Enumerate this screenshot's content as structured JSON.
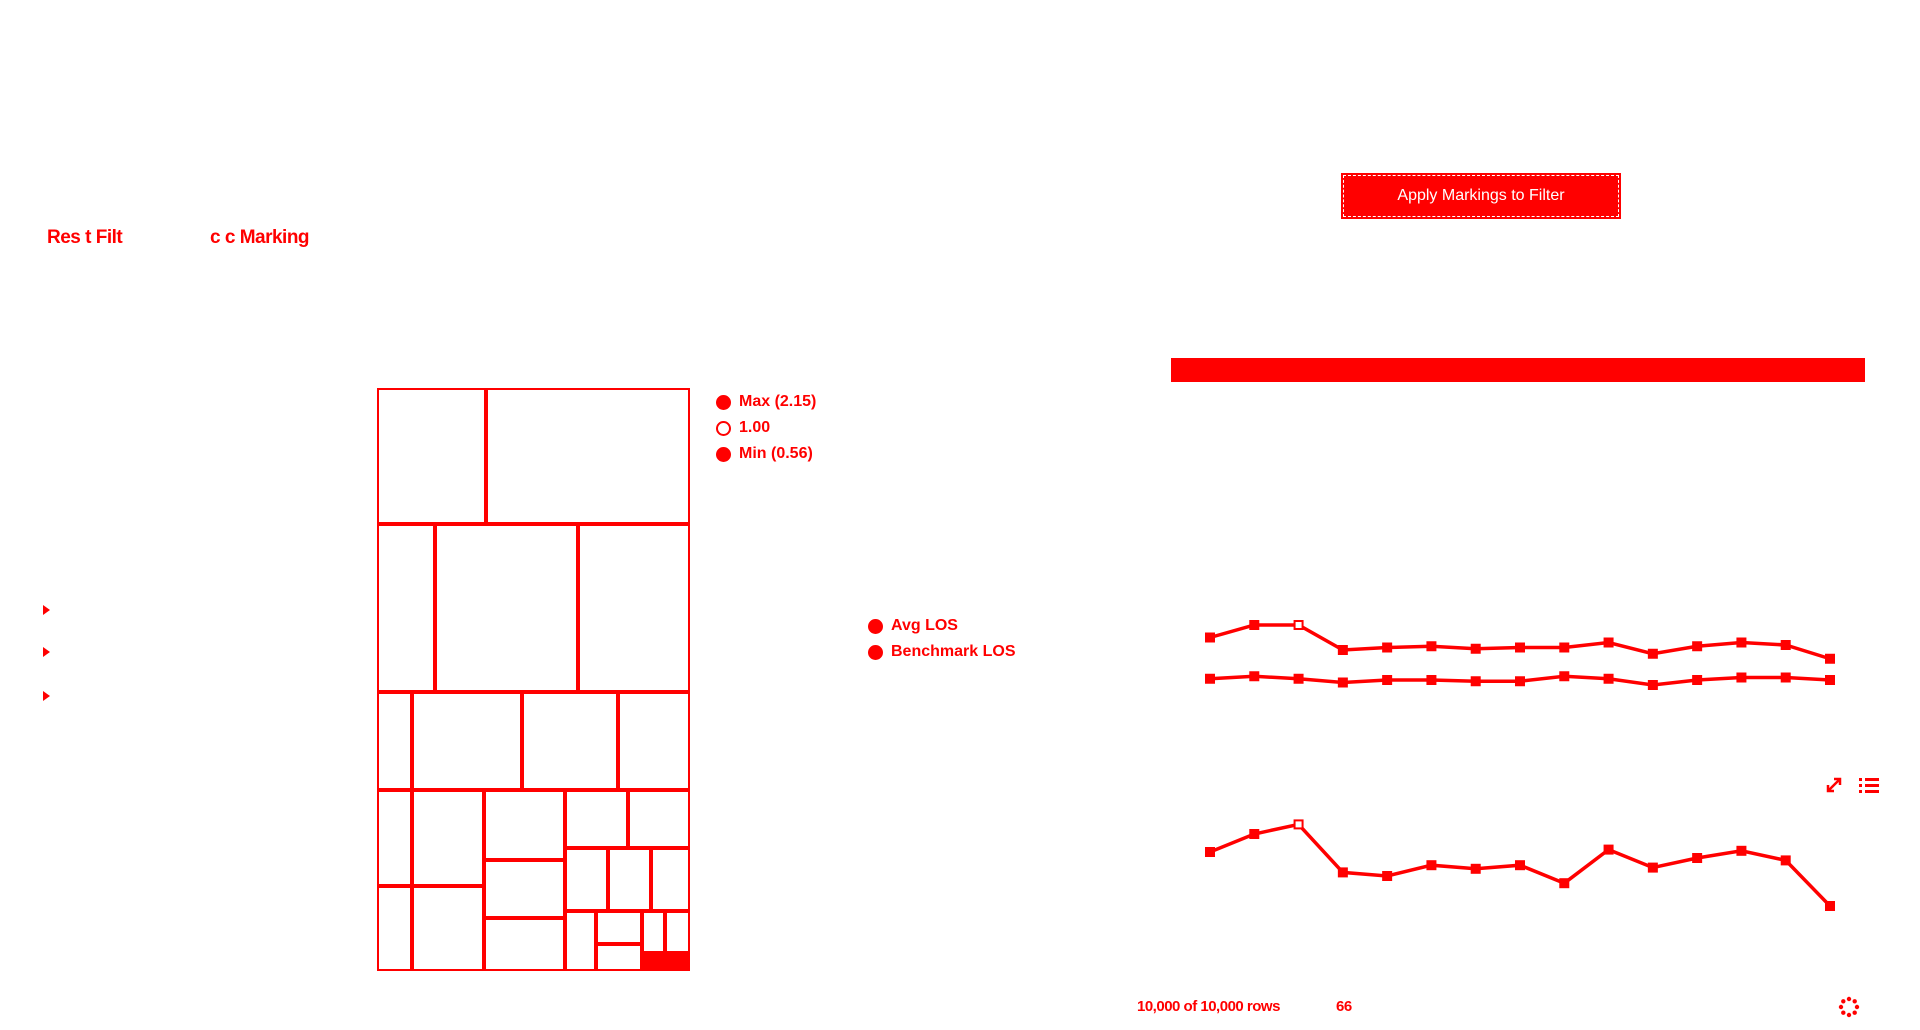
{
  "toolbar": {
    "reset_filters_label": "Res t Filt",
    "clear_marking_label": "c  c  Marking"
  },
  "apply_button": {
    "label": "Apply Markings to Filter"
  },
  "filter_tree": {
    "items": [
      {
        "expanded": false
      },
      {
        "expanded": false
      },
      {
        "expanded": false
      }
    ]
  },
  "treemap_legend": {
    "items": [
      {
        "label": "Max (2.15)",
        "style": "filled"
      },
      {
        "label": "1.00",
        "style": "hollow"
      },
      {
        "label": "Min (0.56)",
        "style": "filled"
      }
    ]
  },
  "line_legend": {
    "items": [
      {
        "label": "Avg LOS"
      },
      {
        "label": "Benchmark LOS"
      }
    ]
  },
  "chart_data": [
    {
      "type": "line",
      "series": [
        {
          "name": "Avg LOS",
          "values": [
            1.0,
            2.0,
            2.0,
            0.0,
            0.2,
            0.3,
            0.1,
            0.2,
            0.2,
            0.6,
            -0.3,
            0.3,
            0.6,
            0.4,
            -0.7
          ]
        },
        {
          "name": "Benchmark LOS",
          "values": [
            -2.3,
            -2.1,
            -2.3,
            -2.6,
            -2.4,
            -2.4,
            -2.5,
            -2.5,
            -2.1,
            -2.3,
            -2.8,
            -2.4,
            -2.2,
            -2.2,
            -2.4
          ]
        }
      ],
      "ylim": [
        -4,
        4
      ]
    },
    {
      "type": "line",
      "series": [
        {
          "values": [
            1.5,
            3.0,
            3.8,
            -0.2,
            -0.5,
            0.4,
            0.1,
            0.4,
            -1.1,
            1.7,
            0.2,
            1.0,
            1.6,
            0.8,
            -3.0
          ]
        }
      ],
      "ylim": [
        -5,
        5
      ]
    }
  ],
  "footer": {
    "rows_text": "10,000 of 10,000 rows",
    "count_text": "66"
  },
  "icons": {
    "expand": "expand-icon",
    "list": "list-icon",
    "spinner": "spinner-icon"
  }
}
